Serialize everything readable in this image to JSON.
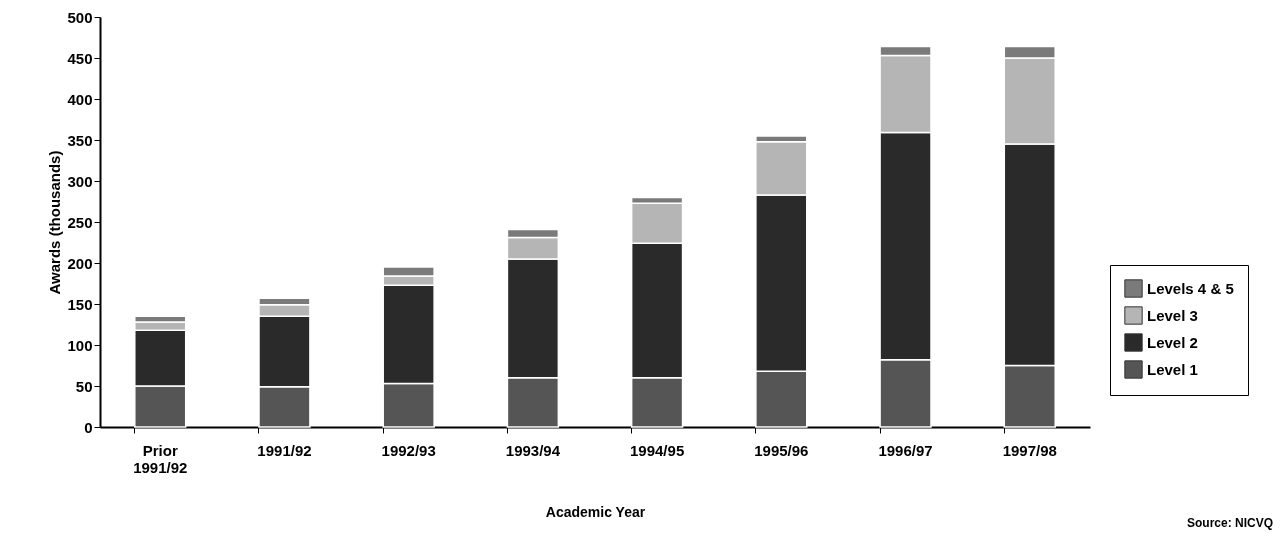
{
  "chart_data": {
    "type": "bar",
    "stacked": true,
    "categories": [
      "Prior\n1991/92",
      "1991/92",
      "1992/93",
      "1993/94",
      "1994/95",
      "1995/96",
      "1996/97",
      "1997/98"
    ],
    "series": [
      {
        "name": "Level 1",
        "color": "#555555",
        "values": [
          50,
          49,
          53,
          60,
          60,
          68,
          82,
          75
        ]
      },
      {
        "name": "Level 2",
        "color": "#2a2a2a",
        "values": [
          68,
          86,
          120,
          145,
          164,
          215,
          277,
          270
        ]
      },
      {
        "name": "Level 3",
        "color": "#b5b5b5",
        "values": [
          10,
          14,
          11,
          26,
          49,
          65,
          94,
          105
        ]
      },
      {
        "name": "Levels 4 & 5",
        "color": "#7a7a7a",
        "values": [
          7,
          8,
          11,
          10,
          7,
          7,
          11,
          14
        ]
      }
    ],
    "xlabel": "Academic Year",
    "ylabel": "Awards (thousands)",
    "ylim": [
      0,
      500
    ],
    "yticks": [
      0,
      50,
      100,
      150,
      200,
      250,
      300,
      350,
      400,
      450,
      500
    ],
    "grid": false,
    "legend": "right",
    "annotations": [
      "Source: NICVQ"
    ]
  }
}
